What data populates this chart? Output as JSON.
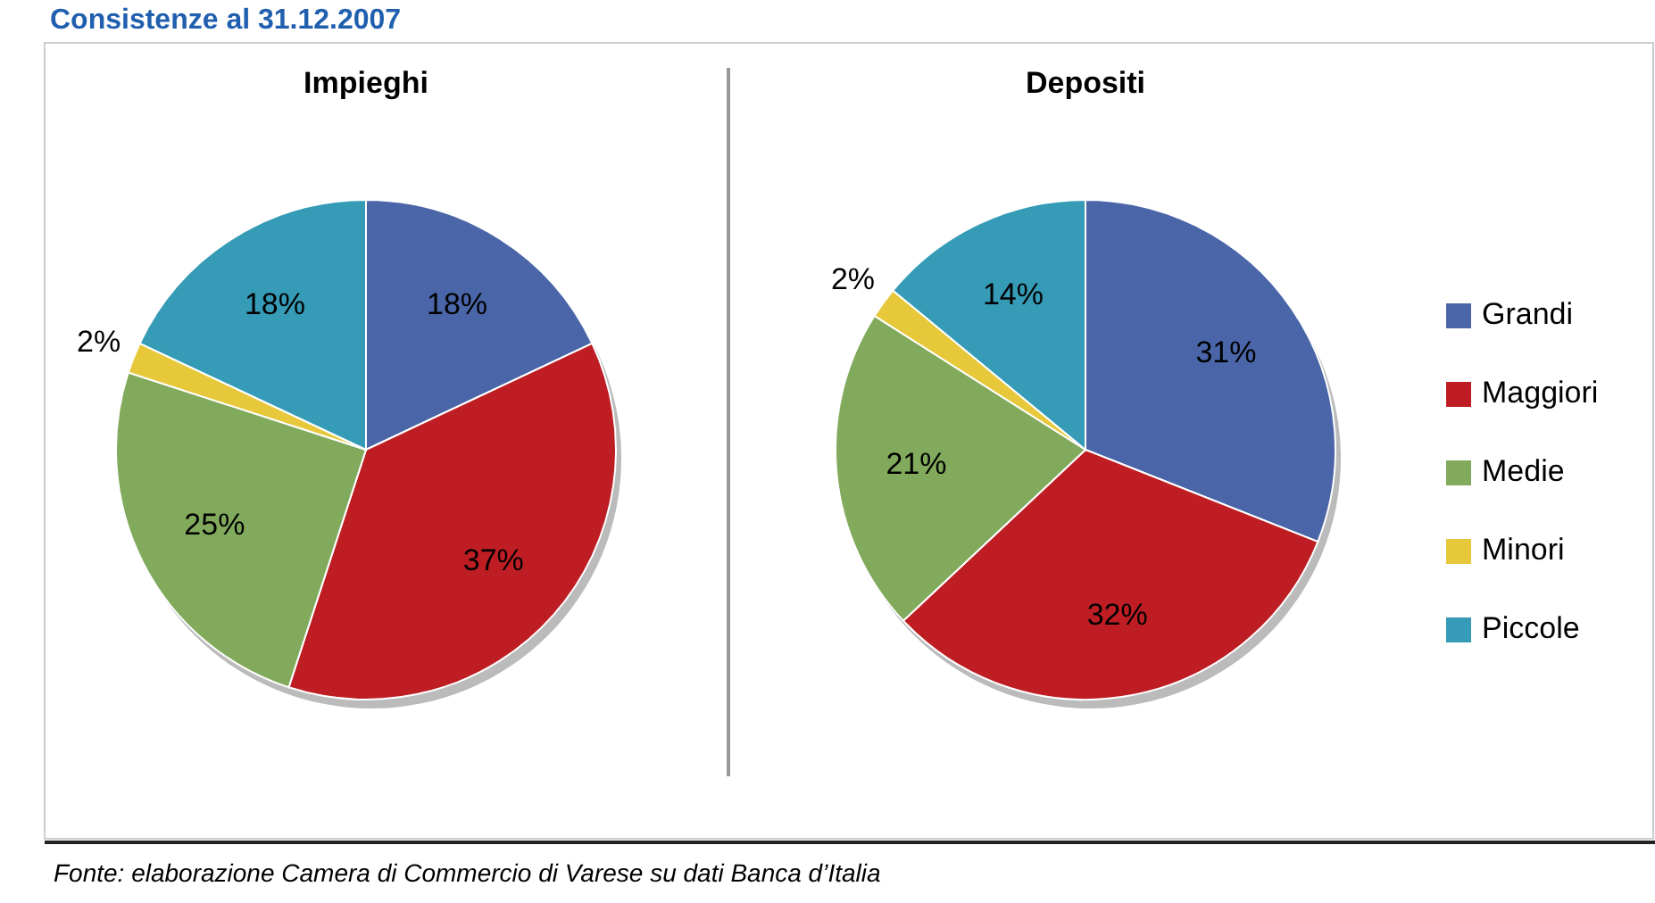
{
  "chart_data": [
    {
      "type": "pie",
      "title": "Impieghi",
      "categories": [
        null,
        null,
        null,
        null,
        null
      ],
      "values": [
        18,
        37,
        25,
        2,
        18
      ],
      "value_labels": [
        "18%",
        "37%",
        "25%",
        "2%",
        "18%"
      ],
      "colors": [
        "#4a66a8",
        "#be1e23",
        "#82aa5c",
        "#e6c83a",
        "#359bb6"
      ],
      "legend": false,
      "annotations": [
        "Consistenze al 31.12.2007",
        "Fonte: elaborazione Camera di Commercio di Varese su dati Banca d’Italia"
      ]
    },
    {
      "type": "pie",
      "title": "Depositi",
      "categories": [
        "Grandi",
        "Maggiori",
        "Medie",
        "Minori",
        "Piccole"
      ],
      "values": [
        31,
        32,
        21,
        2,
        14
      ],
      "value_labels": [
        "31%",
        "32%",
        "21%",
        "2%",
        "14%"
      ],
      "colors": [
        "#4a66a8",
        "#be1e23",
        "#82aa5c",
        "#e6c83a",
        "#359bb6"
      ],
      "legend": "right"
    }
  ]
}
